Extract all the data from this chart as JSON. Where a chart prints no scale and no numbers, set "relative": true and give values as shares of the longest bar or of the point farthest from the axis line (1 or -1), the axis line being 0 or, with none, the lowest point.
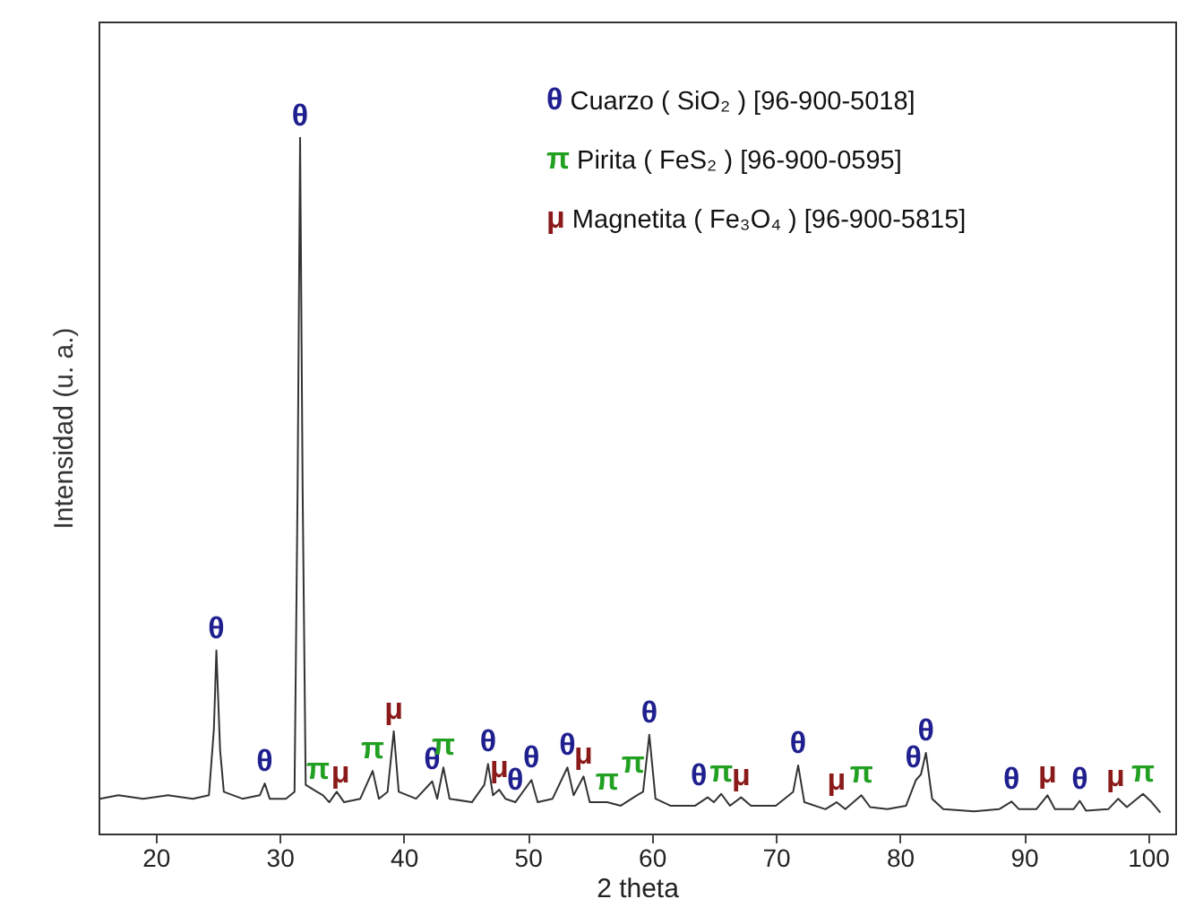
{
  "chart_data": {
    "type": "line",
    "xlabel": "2 theta",
    "ylabel": "Intensidad (u. a.)",
    "relative": true,
    "xlim": [
      15.4,
      102.2
    ],
    "xticks": [
      20,
      30,
      40,
      50,
      60,
      70,
      80,
      90,
      100
    ],
    "series": [
      {
        "color": "#333333",
        "x": [
          15.5,
          17,
          19,
          21,
          23,
          24.3,
          24.7,
          24.9,
          25.2,
          25.5,
          27,
          28.4,
          28.8,
          29.2,
          30.5,
          31.2,
          31.45,
          31.65,
          31.85,
          32.1,
          33,
          33.5,
          34,
          34.6,
          35.2,
          36.5,
          37.5,
          38,
          38.7,
          39.2,
          39.6,
          41,
          42.3,
          42.7,
          43.2,
          43.7,
          45.5,
          46.5,
          46.8,
          47.2,
          47.7,
          48.2,
          49,
          50.3,
          50.8,
          52,
          53.2,
          53.7,
          54.5,
          55,
          56.4,
          57.5,
          58.8,
          59.3,
          59.8,
          60.3,
          61.5,
          63.5,
          64.5,
          65,
          65.6,
          66.3,
          67.2,
          68,
          70,
          71.4,
          71.8,
          72.3,
          74,
          74.9,
          75.6,
          76.9,
          77.6,
          79,
          80.5,
          81.3,
          81.7,
          82.1,
          82.6,
          83.5,
          86,
          88,
          89,
          89.6,
          91,
          91.9,
          92.5,
          94,
          94.5,
          95,
          96.8,
          97.6,
          98.3,
          99.6,
          100.3,
          101
        ],
        "values": [
          0.05,
          0.055,
          0.05,
          0.055,
          0.05,
          0.055,
          0.15,
          0.263,
          0.12,
          0.06,
          0.05,
          0.055,
          0.072,
          0.05,
          0.05,
          0.06,
          0.5,
          1,
          0.5,
          0.07,
          0.06,
          0.055,
          0.045,
          0.06,
          0.045,
          0.05,
          0.09,
          0.05,
          0.06,
          0.147,
          0.06,
          0.05,
          0.075,
          0.05,
          0.095,
          0.05,
          0.045,
          0.07,
          0.1,
          0.055,
          0.063,
          0.05,
          0.045,
          0.077,
          0.045,
          0.05,
          0.095,
          0.055,
          0.082,
          0.045,
          0.045,
          0.04,
          0.055,
          0.06,
          0.142,
          0.05,
          0.04,
          0.04,
          0.052,
          0.045,
          0.057,
          0.04,
          0.052,
          0.04,
          0.04,
          0.06,
          0.098,
          0.045,
          0.035,
          0.045,
          0.035,
          0.055,
          0.038,
          0.035,
          0.04,
          0.077,
          0.085,
          0.116,
          0.05,
          0.035,
          0.032,
          0.035,
          0.046,
          0.035,
          0.035,
          0.055,
          0.035,
          0.035,
          0.047,
          0.033,
          0.035,
          0.05,
          0.038,
          0.057,
          0.045,
          0.03
        ]
      }
    ],
    "annotations": [
      "θ Cuarzo ( SiO₂ ) [96-900-5018]",
      "π Pirita ( FeS₂ ) [96-900-0595]",
      "μ Magnetita ( Fe₃O₄ ) [96-900-5815]",
      {
        "text": "θ",
        "x": 24.9,
        "y": 0.263
      },
      {
        "text": "θ",
        "x": 28.8,
        "y": 0.072
      },
      {
        "text": "θ",
        "x": 31.65,
        "y": 1
      },
      {
        "text": "π",
        "x": 33.1,
        "y": 0.06
      },
      {
        "text": "μ",
        "x": 34.9,
        "y": 0.055
      },
      {
        "text": "π",
        "x": 37.5,
        "y": 0.09
      },
      {
        "text": "μ",
        "x": 39.2,
        "y": 0.147
      },
      {
        "text": "θ",
        "x": 42.3,
        "y": 0.075
      },
      {
        "text": "π",
        "x": 43.2,
        "y": 0.095
      },
      {
        "text": "θ",
        "x": 46.8,
        "y": 0.1
      },
      {
        "text": "μ",
        "x": 47.7,
        "y": 0.063
      },
      {
        "text": "θ",
        "x": 49,
        "y": 0.045
      },
      {
        "text": "θ",
        "x": 50.3,
        "y": 0.077
      },
      {
        "text": "θ",
        "x": 53.2,
        "y": 0.095
      },
      {
        "text": "μ",
        "x": 54.5,
        "y": 0.082
      },
      {
        "text": "π",
        "x": 56.4,
        "y": 0.045
      },
      {
        "text": "π",
        "x": 58.5,
        "y": 0.07
      },
      {
        "text": "θ",
        "x": 59.8,
        "y": 0.142
      },
      {
        "text": "θ",
        "x": 63.8,
        "y": 0.052
      },
      {
        "text": "π",
        "x": 65.6,
        "y": 0.057
      },
      {
        "text": "μ",
        "x": 67.2,
        "y": 0.052
      },
      {
        "text": "θ",
        "x": 71.8,
        "y": 0.098
      },
      {
        "text": "μ",
        "x": 74.9,
        "y": 0.045
      },
      {
        "text": "π",
        "x": 76.9,
        "y": 0.055
      },
      {
        "text": "θ",
        "x": 81.1,
        "y": 0.077
      },
      {
        "text": "θ",
        "x": 82.1,
        "y": 0.116
      },
      {
        "text": "θ",
        "x": 89,
        "y": 0.046
      },
      {
        "text": "μ",
        "x": 91.9,
        "y": 0.055
      },
      {
        "text": "θ",
        "x": 94.5,
        "y": 0.047
      },
      {
        "text": "μ",
        "x": 97.4,
        "y": 0.05
      },
      {
        "text": "π",
        "x": 99.6,
        "y": 0.057
      }
    ]
  }
}
